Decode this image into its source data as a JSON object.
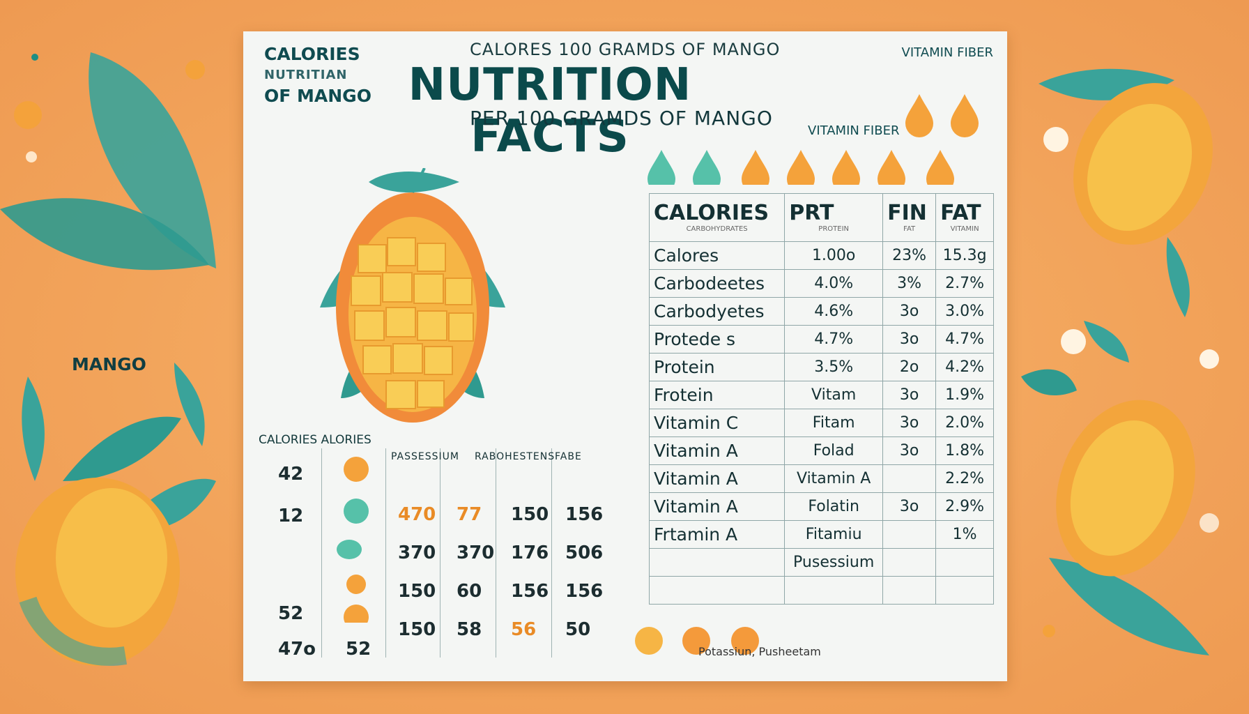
{
  "header": {
    "left_line1": "CALORIES",
    "left_line2": "NUTRITIAN",
    "left_line3": "OF MANGO",
    "top_line": "CALORES   100 GRAMDS OF MANGO",
    "title": "NUTRITION FACTS",
    "subtitle": "PER 100 GRAMDS OF MANGO",
    "vitamin_fiber_top": "VITAMIN FIBER",
    "vitamin_fiber_mid": "VITAMIN FIBER"
  },
  "side_label": "MANGO",
  "colors": {
    "teal": "#0b4a4b",
    "orange": "#f29a3c",
    "background": "#f2a35a",
    "leaf": "#3aa39a"
  },
  "nutrition_table": {
    "headers": [
      {
        "label": "CALORIES",
        "sub": "CARBOHYDRATES"
      },
      {
        "label": "PRT",
        "sub": "PROTEIN"
      },
      {
        "label": "FIN",
        "sub": "FAT"
      },
      {
        "label": "FAT",
        "sub": "VITAMIN"
      }
    ],
    "rows": [
      [
        "Calores",
        "1.00o",
        "23%",
        "15.3g"
      ],
      [
        "Carbodeetes",
        "4.0%",
        "3%",
        "2.7%"
      ],
      [
        "Carbodyetes",
        "4.6%",
        "3o",
        "3.0%"
      ],
      [
        "Protede s",
        "4.7%",
        "3o",
        "4.7%"
      ],
      [
        "Protein",
        "3.5%",
        "2o",
        "4.2%"
      ],
      [
        "Frotein",
        "Vitam",
        "3o",
        "1.9%"
      ],
      [
        "Vitamin C",
        "Fitam",
        "3o",
        "2.0%"
      ],
      [
        "Vitamin A",
        "Folad",
        "3o",
        "1.8%"
      ],
      [
        "Vitamin A",
        "Vitamin A",
        "",
        "2.2%"
      ],
      [
        "Vitamin A",
        "Folatin",
        "3o",
        "2.9%"
      ],
      [
        "Frtamin A",
        "Fitamiu",
        "",
        "1%"
      ],
      [
        "",
        "Pusessium",
        "",
        ""
      ],
      [
        "",
        "",
        "",
        ""
      ]
    ]
  },
  "calorie_box": {
    "title": "CALORIES ALORIES",
    "headers": [
      "PASSESSIUM",
      "RABOHESTENS",
      "FABE"
    ],
    "col1": [
      "42",
      "12",
      "",
      "52",
      "47o"
    ],
    "col2": [
      "",
      "",
      "",
      "",
      "52"
    ],
    "col3": [
      "470",
      "370",
      "150",
      "150"
    ],
    "col4": [
      "77",
      "370",
      "60",
      "58"
    ],
    "col5": [
      "150",
      "176",
      "156",
      "56"
    ],
    "col6": [
      "156",
      "506",
      "156",
      "50"
    ]
  },
  "bottom_line": "Potassiun, Pusheetam"
}
